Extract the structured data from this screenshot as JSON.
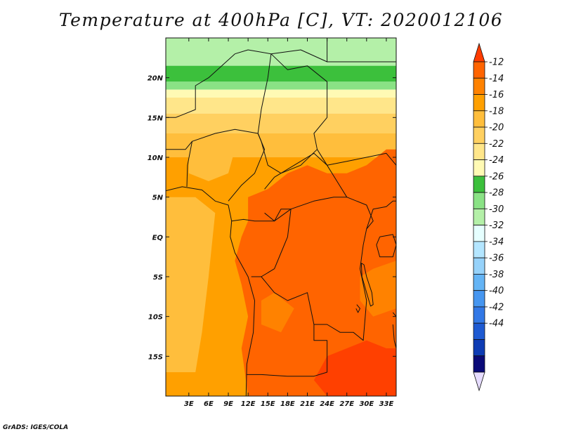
{
  "title": "Temperature at 400hPa [C], VT: 2020012106",
  "footer": "GrADS: IGES/COLA",
  "map": {
    "lon_range": [
      -0.5,
      34.5
    ],
    "lat_range": [
      -20,
      25
    ],
    "lat_ticks": [
      {
        "value": 20,
        "label": "20N"
      },
      {
        "value": 15,
        "label": "15N"
      },
      {
        "value": 10,
        "label": "10N"
      },
      {
        "value": 5,
        "label": "5N"
      },
      {
        "value": 0,
        "label": "EQ"
      },
      {
        "value": -5,
        "label": "5S"
      },
      {
        "value": -10,
        "label": "10S"
      },
      {
        "value": -15,
        "label": "15S"
      }
    ],
    "lon_ticks": [
      {
        "value": 3,
        "label": "3E"
      },
      {
        "value": 6,
        "label": "6E"
      },
      {
        "value": 9,
        "label": "9E"
      },
      {
        "value": 12,
        "label": "12E"
      },
      {
        "value": 15,
        "label": "15E"
      },
      {
        "value": 18,
        "label": "18E"
      },
      {
        "value": 21,
        "label": "21E"
      },
      {
        "value": 24,
        "label": "24E"
      },
      {
        "value": 27,
        "label": "27E"
      },
      {
        "value": 30,
        "label": "30E"
      },
      {
        "value": 33,
        "label": "33E"
      }
    ],
    "bands": [
      {
        "lat_top": 25,
        "lat_bot": 21.5,
        "color": "#b4f0a8"
      },
      {
        "lat_top": 21.5,
        "lat_bot": 19.5,
        "color": "#3cc03c"
      },
      {
        "lat_top": 19.5,
        "lat_bot": 18.5,
        "color": "#8ae285"
      },
      {
        "lat_top": 18.5,
        "lat_bot": 17.5,
        "color": "#fffab4"
      },
      {
        "lat_top": 17.5,
        "lat_bot": 15.5,
        "color": "#ffe68a"
      },
      {
        "lat_top": 15.5,
        "lat_bot": 13,
        "color": "#ffd060"
      },
      {
        "lat_top": 13,
        "lat_bot": 10,
        "color": "#ffbe3c"
      },
      {
        "lat_top": 10,
        "lat_bot": -20,
        "color": "#ffa000"
      }
    ],
    "regions": [
      {
        "name": "congo-warm-core",
        "color": "#ff6400",
        "points": [
          [
            12,
            5
          ],
          [
            15,
            6
          ],
          [
            18,
            8
          ],
          [
            21,
            9
          ],
          [
            24,
            8
          ],
          [
            27,
            8
          ],
          [
            30,
            9
          ],
          [
            33,
            11
          ],
          [
            34.5,
            11
          ],
          [
            34.5,
            -20
          ],
          [
            12,
            -20
          ],
          [
            11,
            -14
          ],
          [
            12,
            -10
          ],
          [
            11,
            -6
          ],
          [
            10,
            -3
          ],
          [
            11,
            0
          ],
          [
            12,
            2
          ]
        ]
      },
      {
        "name": "eastern-warm-band",
        "color": "#ff8200",
        "points": [
          [
            29,
            -5
          ],
          [
            31,
            -4
          ],
          [
            34.5,
            -3
          ],
          [
            34.5,
            -9
          ],
          [
            31,
            -10
          ],
          [
            29,
            -8
          ]
        ]
      },
      {
        "name": "central-warm-spot",
        "color": "#ff8200",
        "points": [
          [
            14,
            -8
          ],
          [
            16,
            -7
          ],
          [
            19,
            -9
          ],
          [
            17,
            -12
          ],
          [
            14,
            -11
          ]
        ]
      },
      {
        "name": "southeast-hot-spot",
        "color": "#ff4000",
        "points": [
          [
            24,
            -15
          ],
          [
            27,
            -14
          ],
          [
            30,
            -13
          ],
          [
            33,
            -14
          ],
          [
            34.5,
            -14
          ],
          [
            34.5,
            -20
          ],
          [
            24,
            -20
          ],
          [
            22,
            -18
          ]
        ]
      },
      {
        "name": "western-cool-strip",
        "color": "#ffbe3c",
        "points": [
          [
            -0.5,
            5
          ],
          [
            4,
            5
          ],
          [
            7,
            3
          ],
          [
            6,
            -5
          ],
          [
            5,
            -12
          ],
          [
            4,
            -17
          ],
          [
            -0.5,
            -17
          ]
        ]
      },
      {
        "name": "sahel-cool-lobe",
        "color": "#ffbe3c",
        "points": [
          [
            3,
            10
          ],
          [
            7,
            12
          ],
          [
            10,
            11
          ],
          [
            9,
            8
          ],
          [
            6,
            7
          ],
          [
            3,
            8
          ]
        ]
      }
    ],
    "borders": [
      {
        "name": "coastline",
        "points": [
          [
            -0.5,
            5.8
          ],
          [
            2,
            6.3
          ],
          [
            5,
            5.9
          ],
          [
            7,
            4.5
          ],
          [
            9,
            4
          ],
          [
            9.5,
            2
          ],
          [
            9.3,
            0
          ],
          [
            10,
            -2
          ],
          [
            11,
            -3.5
          ],
          [
            12,
            -5
          ],
          [
            13,
            -8
          ],
          [
            12.8,
            -12
          ],
          [
            11.8,
            -16
          ],
          [
            11.7,
            -20
          ]
        ]
      },
      {
        "name": "chad-border",
        "points": [
          [
            15.5,
            23
          ],
          [
            18,
            21
          ],
          [
            21,
            21.5
          ],
          [
            24,
            19.5
          ],
          [
            24,
            15
          ],
          [
            22,
            13
          ],
          [
            22.5,
            11
          ],
          [
            20,
            9
          ],
          [
            17,
            8
          ],
          [
            15,
            9
          ],
          [
            14,
            12
          ],
          [
            13.5,
            13
          ],
          [
            14,
            16
          ],
          [
            15,
            20
          ],
          [
            15.5,
            23
          ]
        ]
      },
      {
        "name": "niger-nigeria",
        "points": [
          [
            3.5,
            12
          ],
          [
            7,
            13
          ],
          [
            10,
            13.5
          ],
          [
            13.5,
            13
          ],
          [
            14.5,
            11
          ],
          [
            13,
            8
          ],
          [
            11,
            6.5
          ],
          [
            9,
            4.5
          ]
        ]
      },
      {
        "name": "car-border",
        "points": [
          [
            14.5,
            6
          ],
          [
            16,
            7.5
          ],
          [
            19,
            9
          ],
          [
            22,
            10.5
          ],
          [
            24,
            9
          ],
          [
            27,
            5
          ],
          [
            25,
            5
          ],
          [
            22,
            4.5
          ],
          [
            18.5,
            3.5
          ],
          [
            16,
            2
          ],
          [
            14.5,
            3
          ]
        ]
      },
      {
        "name": "sudan-south",
        "points": [
          [
            22.5,
            11
          ],
          [
            24,
            9
          ],
          [
            27,
            9.5
          ],
          [
            30,
            10
          ],
          [
            33,
            10.5
          ],
          [
            34.5,
            9
          ]
        ]
      },
      {
        "name": "drc-border",
        "points": [
          [
            12.5,
            -5
          ],
          [
            14,
            -5
          ],
          [
            16,
            -7
          ],
          [
            18,
            -8
          ],
          [
            21,
            -7
          ],
          [
            22,
            -11
          ],
          [
            24,
            -11
          ],
          [
            26,
            -12
          ],
          [
            28,
            -12
          ],
          [
            29.5,
            -13
          ],
          [
            30,
            -8
          ],
          [
            29,
            -4
          ],
          [
            29.5,
            -1
          ],
          [
            30,
            1
          ],
          [
            31,
            2
          ],
          [
            30,
            4
          ],
          [
            27,
            5
          ]
        ]
      },
      {
        "name": "congo-gabon",
        "points": [
          [
            9.5,
            2
          ],
          [
            11.3,
            2.2
          ],
          [
            13,
            2
          ],
          [
            14.5,
            2
          ],
          [
            16,
            2
          ],
          [
            17,
            3.5
          ],
          [
            18.5,
            3.5
          ],
          [
            18,
            0
          ],
          [
            17,
            -2
          ],
          [
            16,
            -4
          ],
          [
            14,
            -5
          ],
          [
            12.5,
            -5
          ]
        ]
      },
      {
        "name": "angola-zambia",
        "points": [
          [
            22,
            -11
          ],
          [
            22,
            -13
          ],
          [
            24,
            -13
          ],
          [
            24,
            -17
          ],
          [
            22,
            -17.5
          ],
          [
            18,
            -17.5
          ],
          [
            14,
            -17.3
          ],
          [
            11.8,
            -17.3
          ]
        ]
      },
      {
        "name": "libya-south",
        "points": [
          [
            10,
            23
          ],
          [
            12,
            23.5
          ],
          [
            15.5,
            23
          ],
          [
            20,
            23.5
          ],
          [
            24,
            22
          ],
          [
            24,
            25
          ]
        ]
      },
      {
        "name": "egypt-sudan",
        "points": [
          [
            24,
            22
          ],
          [
            34.5,
            22
          ]
        ]
      },
      {
        "name": "lake-victoria",
        "points": [
          [
            32,
            0
          ],
          [
            34,
            0.3
          ],
          [
            34.5,
            -1
          ],
          [
            34,
            -2.5
          ],
          [
            32,
            -2.5
          ],
          [
            31.5,
            -1
          ],
          [
            32,
            0
          ]
        ]
      },
      {
        "name": "lake-tanganyika",
        "points": [
          [
            29.2,
            -3.3
          ],
          [
            29.6,
            -3.5
          ],
          [
            30,
            -5
          ],
          [
            30.8,
            -7
          ],
          [
            31,
            -8.5
          ],
          [
            30.6,
            -8.7
          ],
          [
            30,
            -7
          ],
          [
            29.3,
            -5
          ],
          [
            29.2,
            -3.3
          ]
        ]
      },
      {
        "name": "lake-malawi",
        "points": [
          [
            34,
            -9.5
          ],
          [
            34.5,
            -10
          ],
          [
            34.5,
            -14
          ],
          [
            34.2,
            -13
          ],
          [
            34,
            -11
          ]
        ]
      },
      {
        "name": "lake-mweru",
        "points": [
          [
            28.5,
            -8.5
          ],
          [
            29,
            -9
          ],
          [
            28.7,
            -9.5
          ],
          [
            28.4,
            -9
          ]
        ]
      },
      {
        "name": "niger-mali",
        "points": [
          [
            -0.5,
            15
          ],
          [
            1,
            15
          ],
          [
            4,
            16
          ],
          [
            4,
            19
          ],
          [
            6,
            20
          ],
          [
            10,
            23
          ]
        ]
      },
      {
        "name": "west-coast-states",
        "points": [
          [
            -0.5,
            11
          ],
          [
            1,
            11
          ],
          [
            2.5,
            11
          ],
          [
            3.5,
            12
          ],
          [
            2.8,
            9
          ],
          [
            2.7,
            6.3
          ]
        ]
      },
      {
        "name": "uganda-kenya",
        "points": [
          [
            30,
            1
          ],
          [
            31,
            3.5
          ],
          [
            33,
            3.8
          ],
          [
            34,
            4.5
          ],
          [
            34.5,
            4.5
          ]
        ]
      }
    ]
  },
  "colorbar": {
    "colors": [
      "#e6dcff",
      "#0a0a78",
      "#0e3cb4",
      "#1e5ad2",
      "#3278e6",
      "#4696f0",
      "#64b4f5",
      "#96d2fa",
      "#b4e6ff",
      "#e6ffff",
      "#b4f0a8",
      "#8ae285",
      "#3cc03c",
      "#fffab4",
      "#ffe68a",
      "#ffd060",
      "#ffbe3c",
      "#ffa000",
      "#ff8200",
      "#ff6400",
      "#ff3c00"
    ],
    "labels": [
      "-12",
      "-14",
      "-16",
      "-18",
      "-20",
      "-22",
      "-24",
      "-26",
      "-28",
      "-30",
      "-32",
      "-34",
      "-36",
      "-38",
      "-40",
      "-42",
      "-44"
    ]
  }
}
